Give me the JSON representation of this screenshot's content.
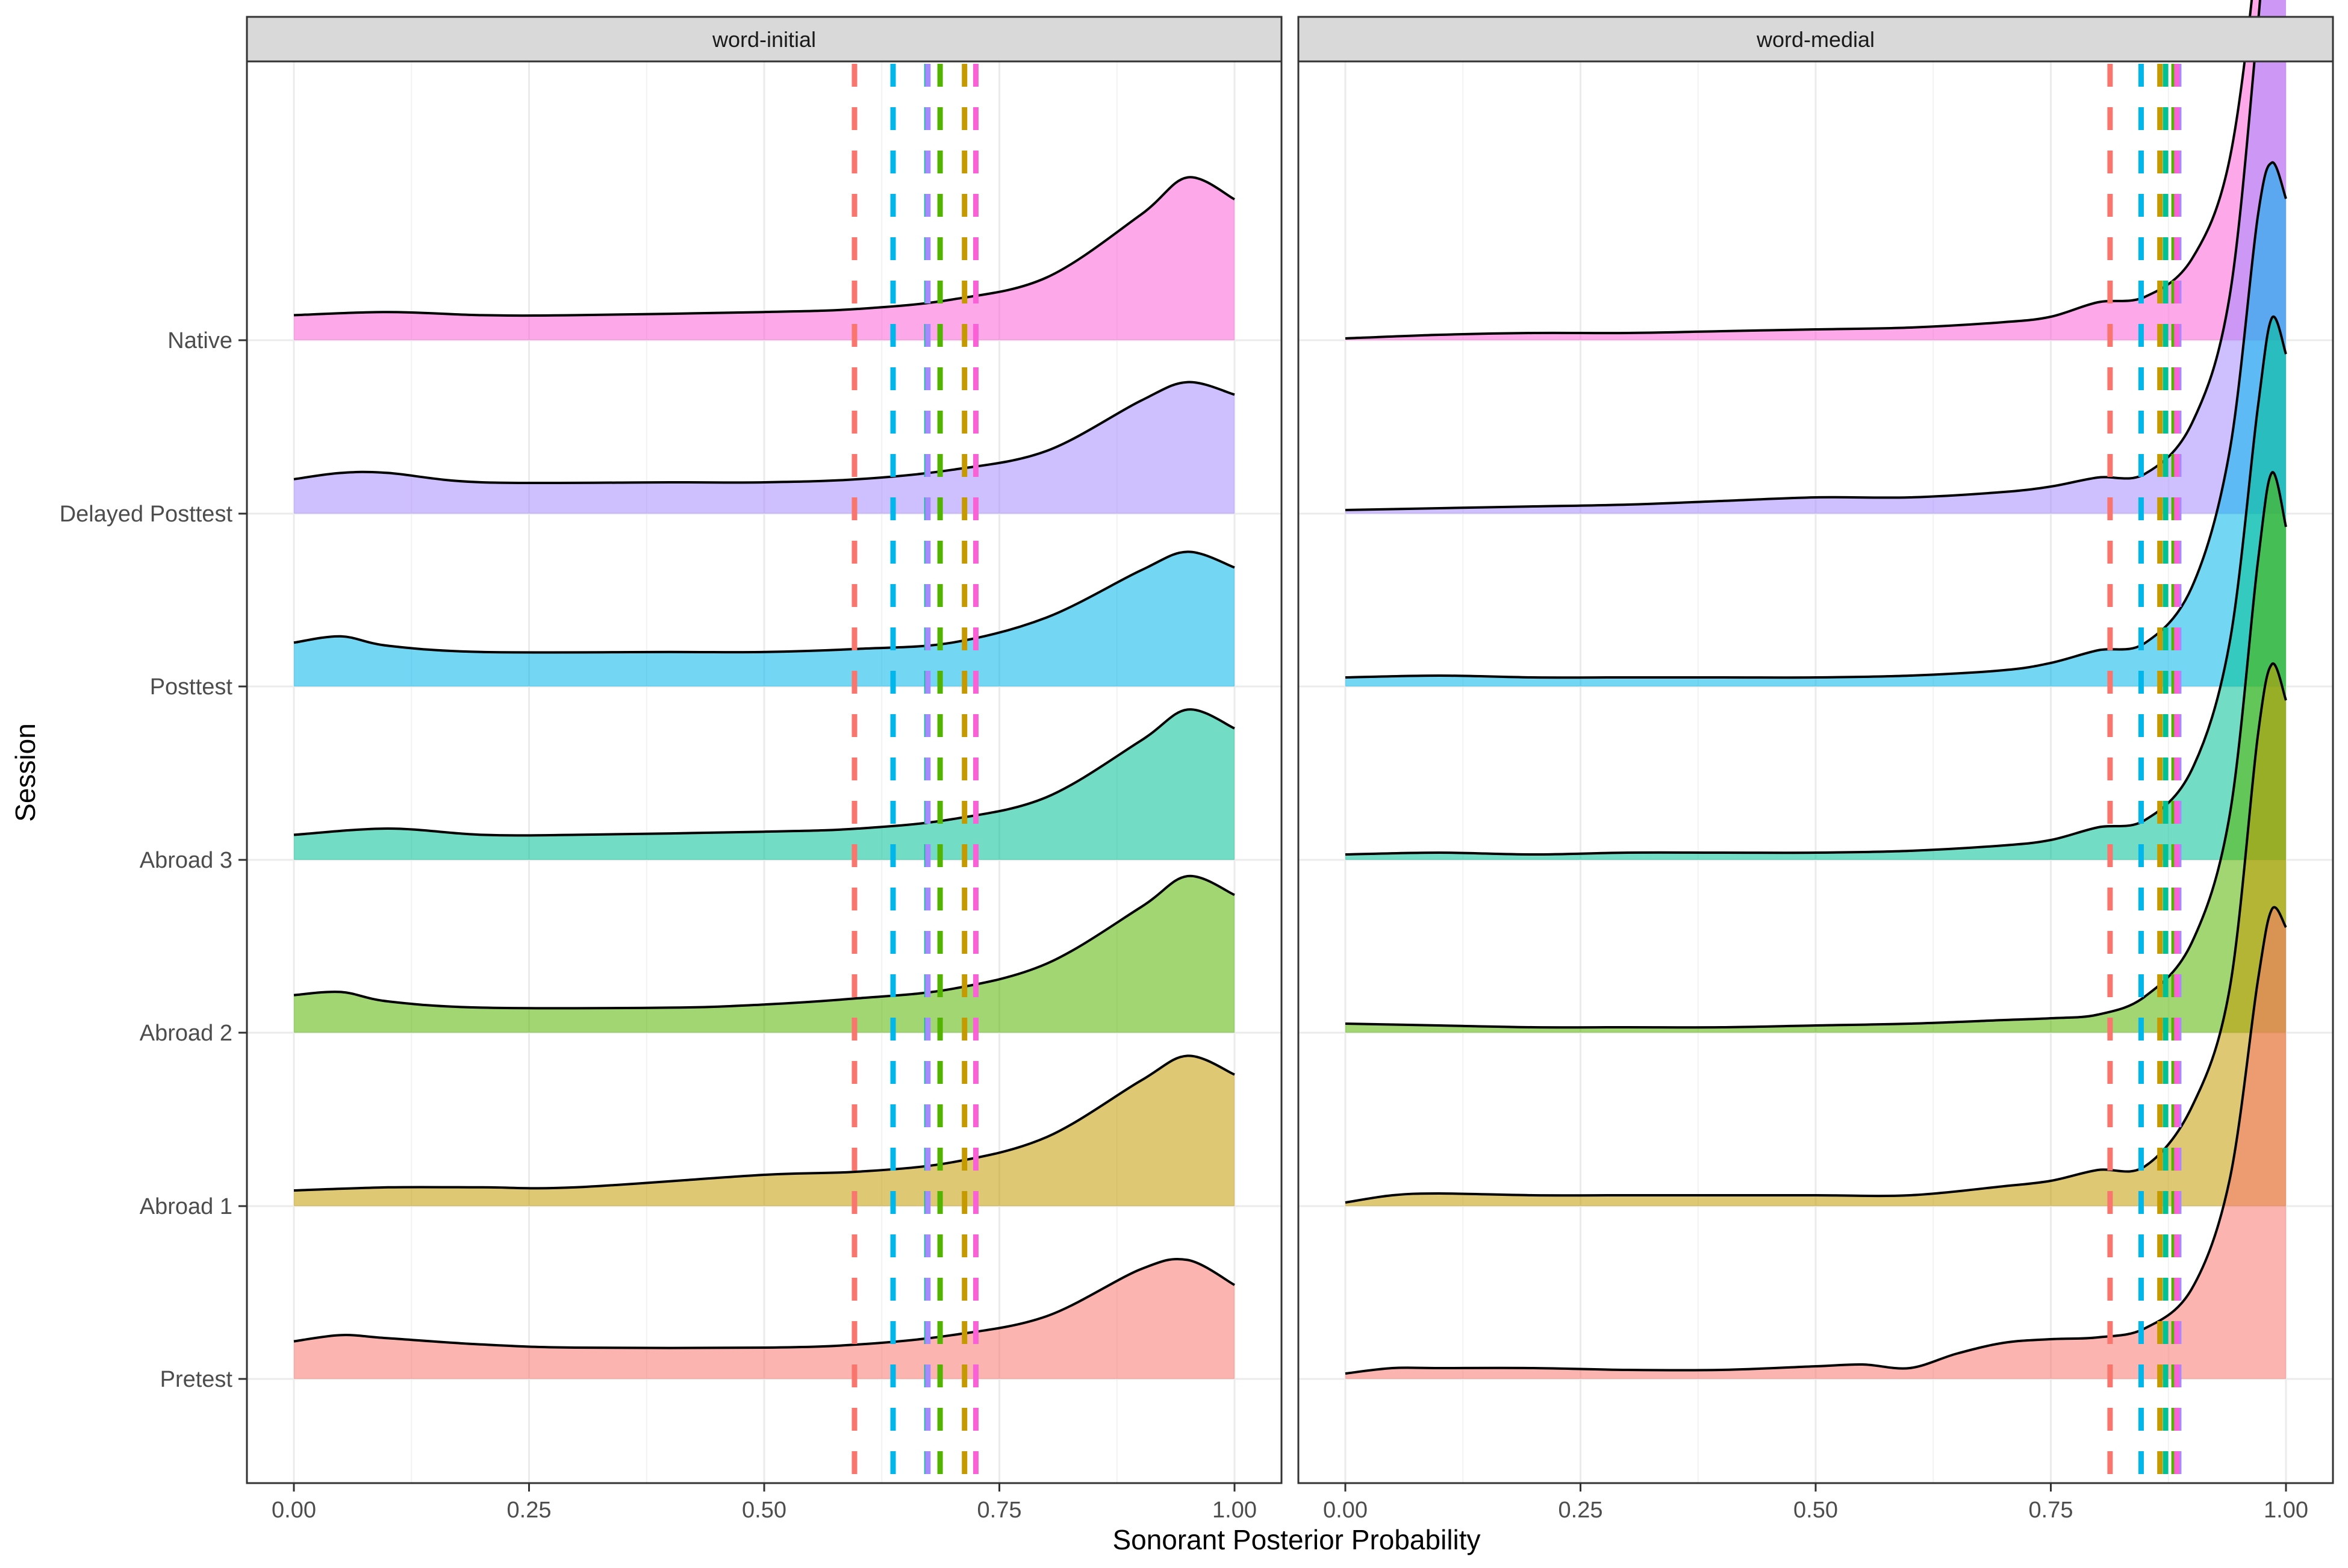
{
  "chart_data": {
    "type": "ridgeline-density",
    "xlabel": "Sonorant Posterior Probability",
    "ylabel": "Session",
    "xlim": [
      0,
      1
    ],
    "x_ticks": [
      0,
      0.25,
      0.5,
      0.75,
      1
    ],
    "x_tick_labels": [
      "0.00",
      "0.25",
      "0.50",
      "0.75",
      "1.00"
    ],
    "sessions": [
      {
        "name": "Pretest",
        "color": "#F8766D"
      },
      {
        "name": "Abroad 1",
        "color": "#C49A00"
      },
      {
        "name": "Abroad 2",
        "color": "#53B400"
      },
      {
        "name": "Abroad 3",
        "color": "#00C094"
      },
      {
        "name": "Posttest",
        "color": "#00B6EB"
      },
      {
        "name": "Delayed Posttest",
        "color": "#A58AFF"
      },
      {
        "name": "Native",
        "color": "#FB61D7"
      }
    ],
    "panels": [
      {
        "label": "word-initial",
        "means": [
          0.596,
          0.713,
          0.687,
          0.673,
          0.637,
          0.674,
          0.725
        ],
        "curves": [
          {
            "x": [
              0,
              0.05,
              0.1,
              0.2,
              0.3,
              0.5,
              0.6,
              0.7,
              0.8,
              0.9,
              0.95,
              1.0
            ],
            "y": [
              0.12,
              0.14,
              0.13,
              0.11,
              0.1,
              0.1,
              0.11,
              0.14,
              0.2,
              0.35,
              0.38,
              0.3
            ]
          },
          {
            "x": [
              0,
              0.1,
              0.2,
              0.3,
              0.5,
              0.6,
              0.7,
              0.8,
              0.9,
              0.95,
              1.0
            ],
            "y": [
              0.05,
              0.06,
              0.06,
              0.06,
              0.1,
              0.11,
              0.14,
              0.22,
              0.4,
              0.48,
              0.42
            ]
          },
          {
            "x": [
              0,
              0.05,
              0.1,
              0.2,
              0.4,
              0.5,
              0.6,
              0.7,
              0.8,
              0.9,
              0.95,
              1.0
            ],
            "y": [
              0.12,
              0.13,
              0.1,
              0.08,
              0.08,
              0.09,
              0.11,
              0.14,
              0.22,
              0.4,
              0.5,
              0.44
            ]
          },
          {
            "x": [
              0,
              0.1,
              0.2,
              0.3,
              0.5,
              0.6,
              0.7,
              0.8,
              0.9,
              0.95,
              1.0
            ],
            "y": [
              0.08,
              0.1,
              0.08,
              0.08,
              0.09,
              0.1,
              0.13,
              0.2,
              0.38,
              0.48,
              0.42
            ]
          },
          {
            "x": [
              0,
              0.05,
              0.1,
              0.2,
              0.4,
              0.5,
              0.6,
              0.7,
              0.8,
              0.9,
              0.95,
              1.0
            ],
            "y": [
              0.14,
              0.16,
              0.13,
              0.11,
              0.11,
              0.11,
              0.12,
              0.14,
              0.22,
              0.37,
              0.43,
              0.38
            ]
          },
          {
            "x": [
              0,
              0.05,
              0.1,
              0.2,
              0.4,
              0.5,
              0.6,
              0.7,
              0.8,
              0.9,
              0.95,
              1.0
            ],
            "y": [
              0.11,
              0.13,
              0.13,
              0.1,
              0.1,
              0.1,
              0.11,
              0.14,
              0.2,
              0.36,
              0.42,
              0.38
            ]
          },
          {
            "x": [
              0,
              0.1,
              0.2,
              0.3,
              0.5,
              0.6,
              0.7,
              0.8,
              0.9,
              0.95,
              1.0
            ],
            "y": [
              0.08,
              0.09,
              0.08,
              0.08,
              0.09,
              0.1,
              0.13,
              0.2,
              0.4,
              0.52,
              0.45
            ]
          }
        ]
      },
      {
        "label": "word-medial",
        "means": [
          0.813,
          0.866,
          0.881,
          0.872,
          0.846,
          0.886,
          0.884
        ],
        "curves": [
          {
            "x": [
              0,
              0.05,
              0.1,
              0.2,
              0.3,
              0.4,
              0.5,
              0.55,
              0.6,
              0.65,
              0.7,
              0.75,
              0.8,
              0.85,
              0.9,
              0.94,
              0.97,
              0.985,
              1.0
            ],
            "y": [
              0.03,
              0.06,
              0.06,
              0.06,
              0.05,
              0.05,
              0.07,
              0.08,
              0.06,
              0.14,
              0.2,
              0.22,
              0.23,
              0.28,
              0.5,
              1.1,
              2.2,
              2.6,
              2.5
            ]
          },
          {
            "x": [
              0,
              0.05,
              0.1,
              0.2,
              0.3,
              0.4,
              0.5,
              0.6,
              0.7,
              0.75,
              0.8,
              0.85,
              0.9,
              0.94,
              0.97,
              0.985,
              1.0
            ],
            "y": [
              0.02,
              0.06,
              0.07,
              0.06,
              0.06,
              0.06,
              0.06,
              0.06,
              0.11,
              0.14,
              0.2,
              0.22,
              0.55,
              1.2,
              2.6,
              3.0,
              2.8
            ]
          },
          {
            "x": [
              0,
              0.1,
              0.2,
              0.3,
              0.4,
              0.5,
              0.6,
              0.7,
              0.75,
              0.8,
              0.85,
              0.9,
              0.94,
              0.97,
              0.985,
              1.0
            ],
            "y": [
              0.05,
              0.04,
              0.03,
              0.03,
              0.03,
              0.04,
              0.05,
              0.07,
              0.08,
              0.1,
              0.2,
              0.5,
              1.2,
              2.6,
              3.1,
              2.8
            ]
          },
          {
            "x": [
              0,
              0.1,
              0.2,
              0.3,
              0.4,
              0.5,
              0.6,
              0.7,
              0.75,
              0.8,
              0.85,
              0.9,
              0.94,
              0.97,
              0.985,
              1.0
            ],
            "y": [
              0.03,
              0.04,
              0.03,
              0.04,
              0.04,
              0.04,
              0.05,
              0.08,
              0.11,
              0.18,
              0.22,
              0.5,
              1.2,
              2.5,
              3.0,
              2.8
            ]
          },
          {
            "x": [
              0,
              0.1,
              0.2,
              0.3,
              0.4,
              0.5,
              0.6,
              0.7,
              0.75,
              0.8,
              0.85,
              0.9,
              0.94,
              0.97,
              0.985,
              1.0
            ],
            "y": [
              0.05,
              0.06,
              0.05,
              0.05,
              0.05,
              0.05,
              0.06,
              0.09,
              0.13,
              0.2,
              0.24,
              0.55,
              1.3,
              2.6,
              2.9,
              2.7
            ]
          },
          {
            "x": [
              0,
              0.1,
              0.2,
              0.3,
              0.4,
              0.5,
              0.6,
              0.7,
              0.75,
              0.8,
              0.85,
              0.9,
              0.94,
              0.97,
              0.985,
              1.0
            ],
            "y": [
              0.02,
              0.03,
              0.04,
              0.05,
              0.07,
              0.09,
              0.09,
              0.12,
              0.15,
              0.2,
              0.22,
              0.5,
              1.2,
              2.7,
              3.6,
              3.2
            ]
          },
          {
            "x": [
              0,
              0.1,
              0.2,
              0.3,
              0.4,
              0.5,
              0.6,
              0.7,
              0.75,
              0.8,
              0.85,
              0.9,
              0.94,
              0.97,
              0.985,
              1.0
            ],
            "y": [
              0.01,
              0.03,
              0.04,
              0.04,
              0.05,
              0.06,
              0.07,
              0.1,
              0.13,
              0.21,
              0.24,
              0.45,
              1.0,
              2.2,
              3.3,
              3.0
            ]
          }
        ]
      }
    ]
  }
}
